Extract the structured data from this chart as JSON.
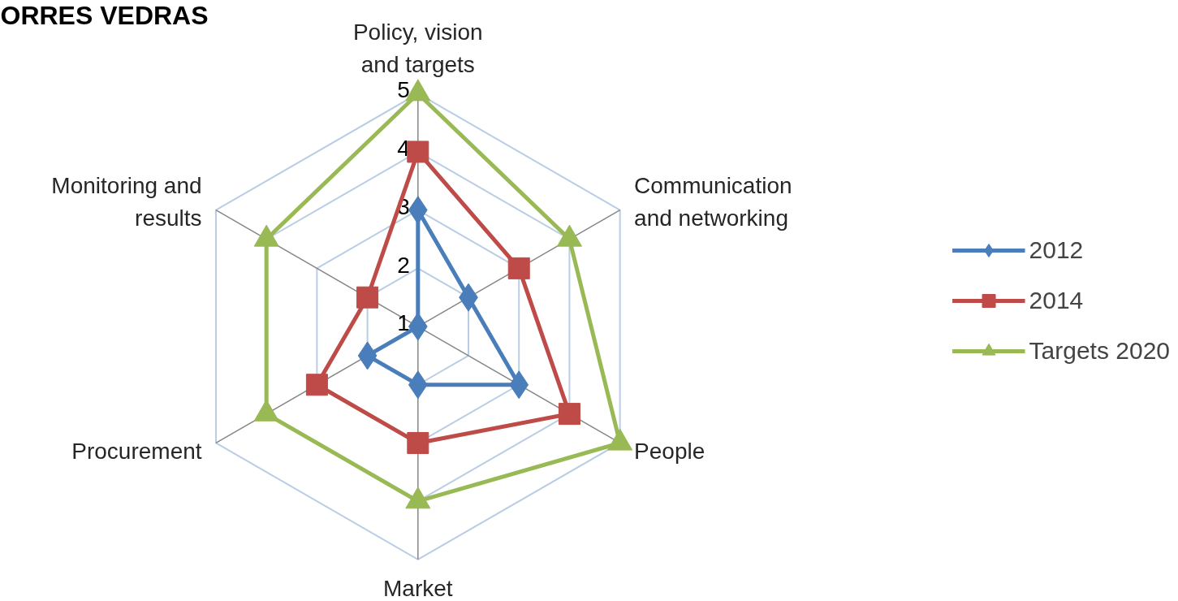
{
  "chart_data": {
    "type": "radar",
    "title": "ORRES VEDRAS",
    "categories": [
      "Policy, vision\nand targets",
      "Communication\nand networking",
      "People",
      "Market",
      "Procurement",
      "Monitoring and\nresults"
    ],
    "ylim": [
      1,
      5
    ],
    "yticks": [
      1,
      2,
      3,
      4,
      5
    ],
    "grid": true,
    "legend": "right",
    "line_style": "solid",
    "series": [
      {
        "name": "2012",
        "color": "#4a7ebb",
        "marker": "diamond",
        "values": [
          3,
          2,
          3,
          2,
          2,
          1
        ]
      },
      {
        "name": "2014",
        "color": "#be4b48",
        "marker": "square",
        "values": [
          4,
          3,
          4,
          3,
          3,
          2
        ]
      },
      {
        "name": "Targets 2020",
        "color": "#98b954",
        "marker": "triangle",
        "values": [
          5,
          4,
          5,
          4,
          4,
          4
        ]
      }
    ]
  }
}
